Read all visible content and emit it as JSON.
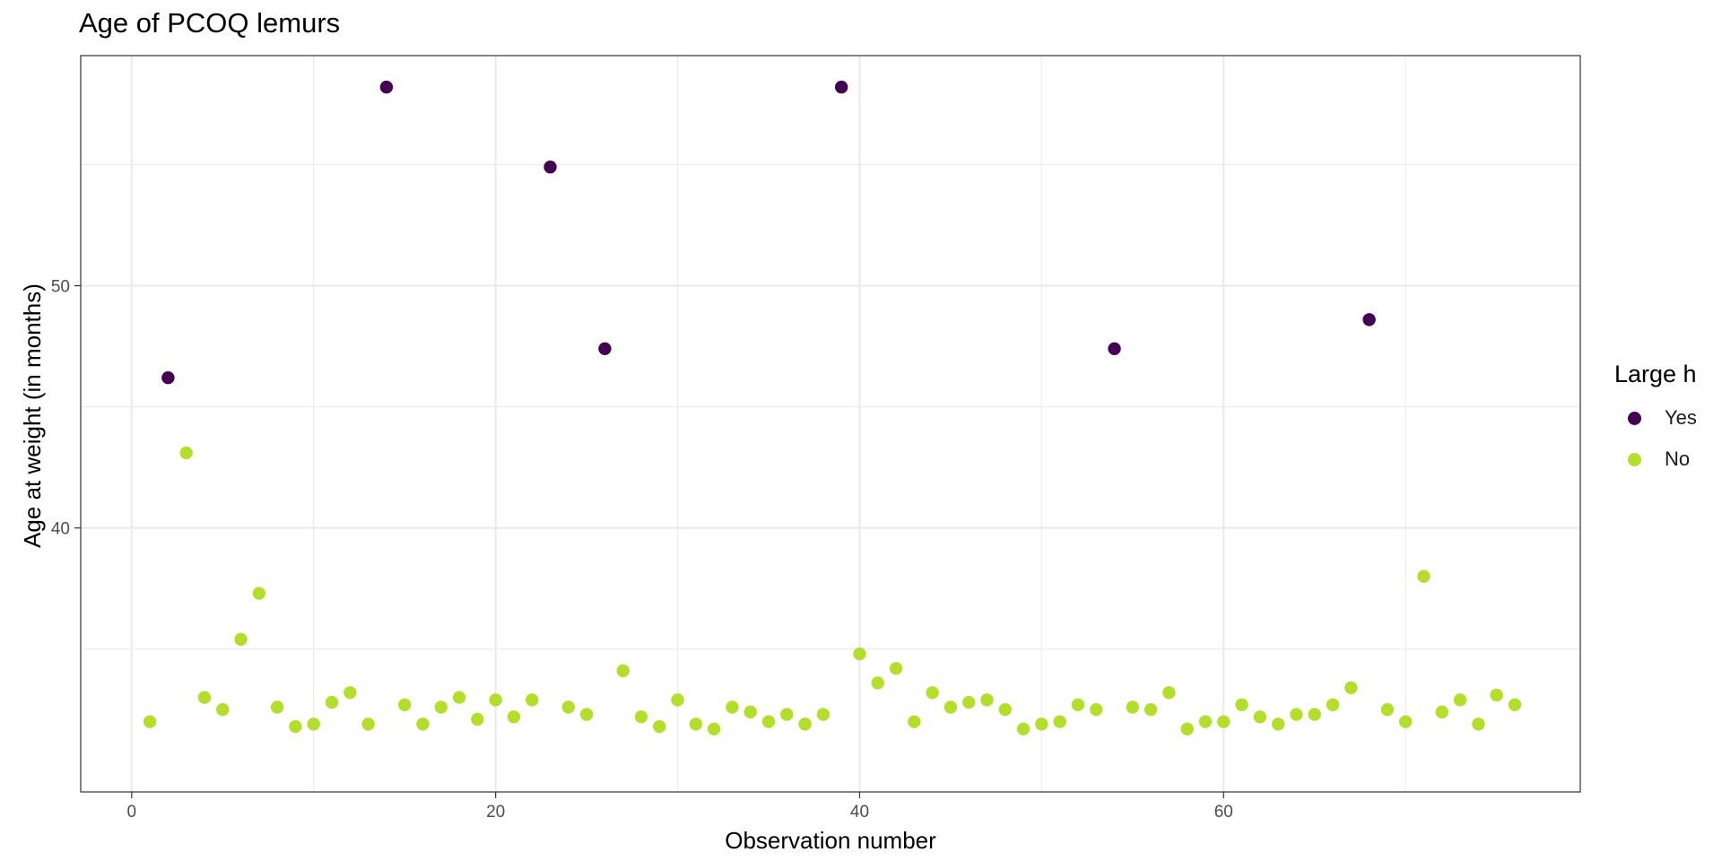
{
  "chart_data": {
    "type": "scatter",
    "title": "Age of PCOQ lemurs",
    "xlabel": "Observation number",
    "ylabel": "Age at weight (in months)",
    "xlim": [
      -2.8,
      79.6
    ],
    "ylim": [
      29.1,
      59.5
    ],
    "x_ticks": [
      0,
      20,
      40,
      60
    ],
    "y_ticks": [
      40,
      50
    ],
    "grid": true,
    "legend": {
      "title": "Large h",
      "position": "right",
      "items": [
        {
          "label": "Yes",
          "color": "#440154"
        },
        {
          "label": "No",
          "color": "#b4de2c"
        }
      ]
    },
    "series": [
      {
        "name": "Yes",
        "color": "#440154",
        "points": [
          [
            2,
            46.2
          ],
          [
            14,
            58.2
          ],
          [
            23,
            54.9
          ],
          [
            26,
            47.4
          ],
          [
            39,
            58.2
          ],
          [
            54,
            47.4
          ],
          [
            68,
            48.6
          ]
        ]
      },
      {
        "name": "No",
        "color": "#b4de2c",
        "points": [
          [
            1,
            32.0
          ],
          [
            3,
            43.1
          ],
          [
            4,
            33.0
          ],
          [
            5,
            32.5
          ],
          [
            6,
            35.4
          ],
          [
            7,
            37.3
          ],
          [
            8,
            32.6
          ],
          [
            9,
            31.8
          ],
          [
            10,
            31.9
          ],
          [
            11,
            32.8
          ],
          [
            12,
            33.2
          ],
          [
            13,
            31.9
          ],
          [
            15,
            32.7
          ],
          [
            16,
            31.9
          ],
          [
            17,
            32.6
          ],
          [
            18,
            33.0
          ],
          [
            19,
            32.1
          ],
          [
            20,
            32.9
          ],
          [
            21,
            32.2
          ],
          [
            22,
            32.9
          ],
          [
            24,
            32.6
          ],
          [
            25,
            32.3
          ],
          [
            27,
            34.1
          ],
          [
            28,
            32.2
          ],
          [
            29,
            31.8
          ],
          [
            30,
            32.9
          ],
          [
            31,
            31.9
          ],
          [
            32,
            31.7
          ],
          [
            33,
            32.6
          ],
          [
            34,
            32.4
          ],
          [
            35,
            32.0
          ],
          [
            36,
            32.3
          ],
          [
            37,
            31.9
          ],
          [
            38,
            32.3
          ],
          [
            40,
            34.8
          ],
          [
            41,
            33.6
          ],
          [
            42,
            34.2
          ],
          [
            43,
            32.0
          ],
          [
            44,
            33.2
          ],
          [
            45,
            32.6
          ],
          [
            46,
            32.8
          ],
          [
            47,
            32.9
          ],
          [
            48,
            32.5
          ],
          [
            49,
            31.7
          ],
          [
            50,
            31.9
          ],
          [
            51,
            32.0
          ],
          [
            52,
            32.7
          ],
          [
            53,
            32.5
          ],
          [
            55,
            32.6
          ],
          [
            56,
            32.5
          ],
          [
            57,
            33.2
          ],
          [
            58,
            31.7
          ],
          [
            59,
            32.0
          ],
          [
            60,
            32.0
          ],
          [
            61,
            32.7
          ],
          [
            62,
            32.2
          ],
          [
            63,
            31.9
          ],
          [
            64,
            32.3
          ],
          [
            65,
            32.3
          ],
          [
            66,
            32.7
          ],
          [
            67,
            33.4
          ],
          [
            69,
            32.5
          ],
          [
            70,
            32.0
          ],
          [
            71,
            38.0
          ],
          [
            72,
            32.4
          ],
          [
            73,
            32.9
          ],
          [
            74,
            31.9
          ],
          [
            75,
            33.1
          ],
          [
            76,
            32.7
          ]
        ]
      }
    ]
  }
}
